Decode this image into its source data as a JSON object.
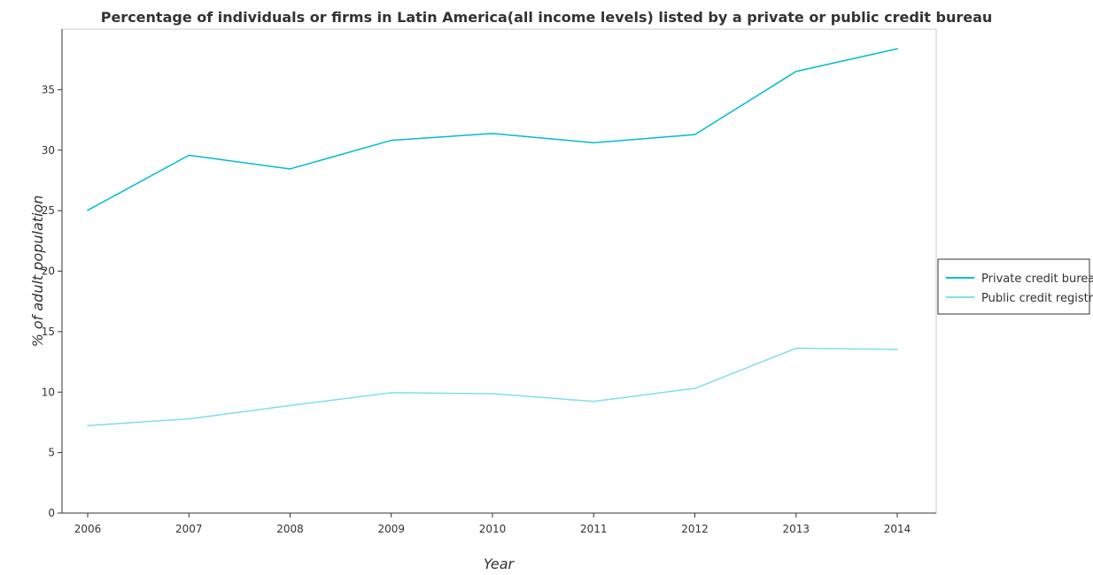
{
  "chart_data": {
    "type": "line",
    "title": "Percentage of individuals or firms in Latin America(all income levels) listed by a private or public credit bureau",
    "xlabel": "Year",
    "ylabel": "% of adult population",
    "categories": [
      "2006",
      "2007",
      "2008",
      "2009",
      "2010",
      "2011",
      "2012",
      "2013",
      "2014"
    ],
    "yticks": [
      0,
      5,
      10,
      15,
      20,
      25,
      30,
      35
    ],
    "ylim": [
      0,
      40
    ],
    "grid": false,
    "legend_position": "right",
    "series": [
      {
        "name": "Private credit bureau",
        "color": "#00bcd4",
        "values": [
          25.03,
          29.58,
          28.45,
          30.81,
          31.38,
          30.61,
          31.29,
          36.51,
          38.38
        ]
      },
      {
        "name": "Public credit registry",
        "color": "#80deea",
        "values": [
          7.23,
          7.79,
          8.89,
          9.95,
          9.87,
          9.23,
          10.31,
          13.62,
          13.53
        ]
      }
    ]
  }
}
